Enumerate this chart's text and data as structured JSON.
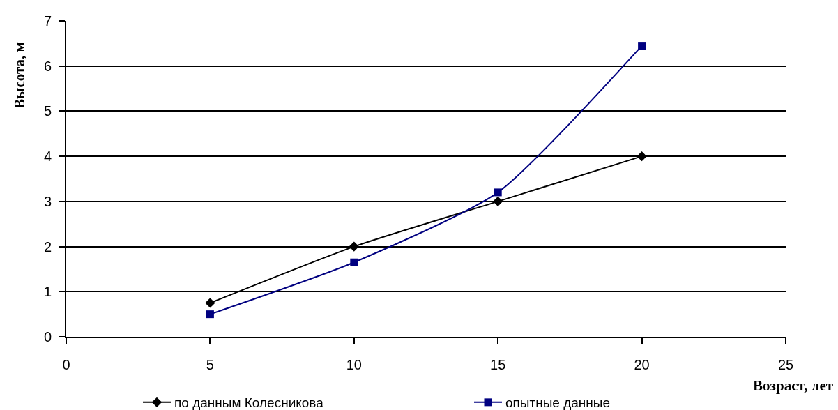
{
  "chart_data": {
    "type": "line",
    "xlabel": "Возраст, лет",
    "ylabel": "Высота, м",
    "x": [
      5,
      10,
      15,
      20
    ],
    "series": [
      {
        "name": "по данным Колесникова",
        "color": "#000000",
        "marker": "diamond",
        "values": [
          0.75,
          2.0,
          3.0,
          4.0
        ]
      },
      {
        "name": "опытные данные",
        "color": "#000080",
        "marker": "square",
        "values": [
          0.5,
          1.65,
          3.2,
          6.45
        ]
      }
    ],
    "xlim": [
      0,
      25
    ],
    "xticks": [
      0,
      5,
      10,
      15,
      20,
      25
    ],
    "ylim": [
      0,
      7
    ],
    "yticks": [
      0,
      1,
      2,
      3,
      4,
      5,
      6,
      7
    ],
    "grid": "y",
    "legend": "bottom",
    "line_style": "solid"
  }
}
